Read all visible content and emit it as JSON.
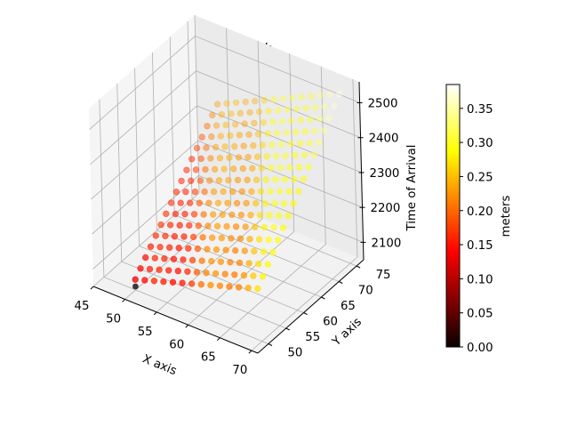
{
  "chart_data": {
    "type": "scatter3d",
    "title": "Flame Length",
    "xlabel": "X axis",
    "ylabel": "Y axis",
    "zlabel": "Time of Arrival",
    "colorbar_label": "meters",
    "colormap": "hot",
    "x_ticks": [
      45,
      50,
      55,
      60,
      65,
      70
    ],
    "y_ticks": [
      50,
      55,
      60,
      65,
      70,
      75
    ],
    "z_ticks": [
      2100,
      2200,
      2300,
      2400,
      2500
    ],
    "colorbar_ticks": [
      "0.00",
      "0.05",
      "0.10",
      "0.15",
      "0.20",
      "0.25",
      "0.30",
      "0.35"
    ],
    "xlim": [
      45,
      71
    ],
    "ylim": [
      47,
      77
    ],
    "zlim": [
      2050,
      2560
    ],
    "clim": [
      0.0,
      0.385
    ],
    "grid": true,
    "point_grid": {
      "x_range": [
        50,
        70
      ],
      "y_range": [
        50,
        75
      ],
      "step": 1.5,
      "description": "Regular grid of ignition points; time of arrival increases with x and y; flame length increases toward high x/y (yellow/white) and is lowest near small x (red). One outlier near x=50,y=50 has value ~0 (black)."
    },
    "outlier": {
      "x": 50,
      "y": 50,
      "z": 2060,
      "value": 0.0
    }
  }
}
